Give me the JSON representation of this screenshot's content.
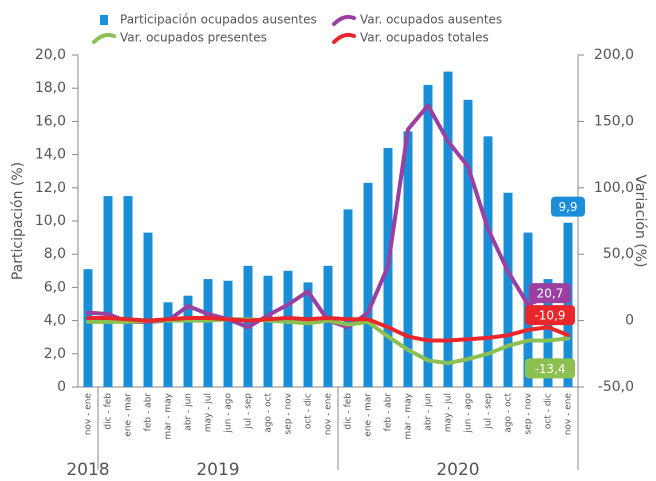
{
  "chart_data": {
    "type": "combo",
    "y_label": "Participación (%)",
    "y2_label": "Variación (%)",
    "categories": [
      "nov - ene",
      "dic - feb",
      "ene - mar",
      "feb - abr",
      "mar - may",
      "abr - jun",
      "may - jul",
      "jun - ago",
      "jul - sep",
      "ago - oct",
      "sep - nov",
      "oct - dic",
      "nov - ene",
      "dic - feb",
      "ene - mar",
      "feb - abr",
      "mar - may",
      "abr - jun",
      "may - jul",
      "jun - ago",
      "jul - sep",
      "ago - oct",
      "sep - nov",
      "oct - dic",
      "nov - ene"
    ],
    "groups": [
      {
        "label": "2018",
        "count": 1
      },
      {
        "label": "2019",
        "count": 12
      },
      {
        "label": "2020",
        "count": 12
      }
    ],
    "ylim": [
      0,
      20
    ],
    "yticks": [
      0,
      {
        "value": 2,
        "label": "2,0"
      },
      {
        "value": 4,
        "label": "4,0"
      },
      {
        "value": 6,
        "label": "6,0"
      },
      {
        "value": 8,
        "label": "8,0"
      },
      {
        "value": 10,
        "label": "10,0"
      },
      {
        "value": 12,
        "label": "12,0"
      },
      {
        "value": 14,
        "label": "14,0"
      },
      {
        "value": 16,
        "label": "16,0"
      },
      {
        "value": 18,
        "label": "18,0"
      },
      {
        "value": 20,
        "label": "20,0"
      }
    ],
    "y2lim": [
      -50,
      200
    ],
    "y2ticks": [
      {
        "value": -50,
        "label": "-50,0"
      },
      0,
      {
        "value": 50,
        "label": "50,0"
      },
      {
        "value": 100,
        "label": "100,0"
      },
      {
        "value": 150,
        "label": "150,0"
      },
      {
        "value": 200,
        "label": "200,0"
      }
    ],
    "grid": false,
    "legend": "top",
    "series": [
      {
        "name": "Participación ocupados ausentes",
        "type": "bar",
        "color": "#1a8fd8",
        "values": [
          7.1,
          11.5,
          11.5,
          9.3,
          5.1,
          5.5,
          6.5,
          6.4,
          7.3,
          6.7,
          7.0,
          6.3,
          7.3,
          10.7,
          12.3,
          14.4,
          15.4,
          18.2,
          19.0,
          17.3,
          15.1,
          11.7,
          9.3,
          6.5,
          9.9
        ],
        "value_labels": [
          null,
          null,
          null,
          null,
          null,
          null,
          null,
          null,
          null,
          null,
          null,
          null,
          null,
          null,
          null,
          null,
          null,
          null,
          null,
          null,
          null,
          null,
          null,
          null,
          "9,9"
        ]
      },
      {
        "name": "Var. ocupados ausentes",
        "type": "line",
        "axis": "y2",
        "color": "#9b3fa0",
        "values": [
          6,
          5,
          -1,
          -1,
          0,
          11,
          5,
          1,
          -5,
          4,
          12,
          22,
          0,
          -5,
          6,
          41,
          144,
          162,
          135,
          116,
          69,
          37,
          12,
          18,
          20.7
        ],
        "value_labels": [
          null,
          null,
          null,
          null,
          null,
          null,
          null,
          null,
          null,
          null,
          null,
          null,
          null,
          null,
          null,
          null,
          null,
          null,
          null,
          null,
          null,
          null,
          null,
          null,
          "20,7"
        ]
      },
      {
        "name": "Var. ocupados presentes",
        "type": "line",
        "axis": "y2",
        "color": "#8cc152",
        "values": [
          -1,
          -1,
          -1,
          0,
          0,
          0,
          0,
          1,
          1,
          0,
          -1,
          -2,
          0,
          -3,
          -1,
          -12,
          -22,
          -30,
          -32,
          -29,
          -25,
          -19,
          -15,
          -15,
          -13.4
        ],
        "value_labels": [
          null,
          null,
          null,
          null,
          null,
          null,
          null,
          null,
          null,
          null,
          null,
          null,
          null,
          null,
          null,
          null,
          null,
          null,
          null,
          null,
          null,
          null,
          null,
          null,
          "-13,4"
        ]
      },
      {
        "name": "Var. ocupados totales",
        "type": "line",
        "axis": "y2",
        "color": "#e8262b",
        "values": [
          2,
          2,
          1,
          0,
          1,
          2,
          2,
          1,
          0,
          1,
          2,
          1,
          2,
          1,
          1,
          -5,
          -12,
          -15,
          -15,
          -14,
          -13,
          -11,
          -7,
          -5,
          -10.9
        ],
        "value_labels": [
          null,
          null,
          null,
          null,
          null,
          null,
          null,
          null,
          null,
          null,
          null,
          null,
          null,
          null,
          null,
          null,
          null,
          null,
          null,
          null,
          null,
          null,
          null,
          null,
          "-10,9"
        ]
      }
    ]
  }
}
